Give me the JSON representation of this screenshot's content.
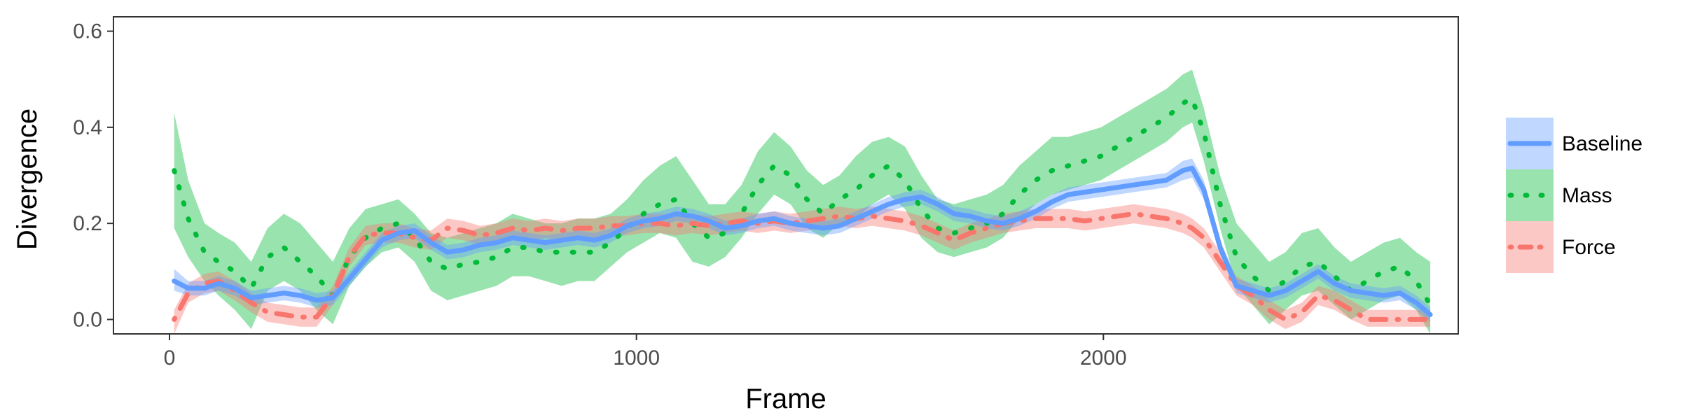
{
  "chart_data": {
    "type": "line",
    "xlabel": "Frame",
    "ylabel": "Divergence",
    "xlim": [
      -120,
      2760
    ],
    "ylim": [
      -0.03,
      0.63
    ],
    "xticks": [
      0,
      1000,
      2000
    ],
    "yticks": [
      0.0,
      0.2,
      0.4,
      0.6
    ],
    "xtick_labels": [
      "0",
      "1000",
      "2000"
    ],
    "ytick_labels": [
      "0.0",
      "0.2",
      "0.4",
      "0.6"
    ],
    "grid": false,
    "legend_position": "right",
    "x": [
      10,
      40,
      75,
      105,
      140,
      175,
      210,
      245,
      280,
      315,
      350,
      385,
      420,
      455,
      490,
      525,
      560,
      595,
      630,
      665,
      700,
      735,
      770,
      805,
      840,
      875,
      910,
      945,
      980,
      1015,
      1050,
      1085,
      1120,
      1155,
      1190,
      1225,
      1260,
      1295,
      1330,
      1365,
      1400,
      1435,
      1470,
      1505,
      1540,
      1575,
      1610,
      1645,
      1680,
      1715,
      1750,
      1785,
      1820,
      1855,
      1890,
      1925,
      1960,
      1995,
      2030,
      2065,
      2100,
      2135,
      2170,
      2190,
      2215,
      2250,
      2285,
      2320,
      2355,
      2390,
      2425,
      2460,
      2495,
      2530,
      2565,
      2600,
      2635,
      2670,
      2700
    ],
    "series": [
      {
        "name": "Baseline",
        "color": "#619CFF",
        "line": "solid",
        "y": [
          0.08,
          0.065,
          0.065,
          0.075,
          0.065,
          0.045,
          0.05,
          0.055,
          0.05,
          0.04,
          0.045,
          0.085,
          0.125,
          0.165,
          0.18,
          0.185,
          0.16,
          0.14,
          0.145,
          0.155,
          0.16,
          0.17,
          0.165,
          0.16,
          0.165,
          0.17,
          0.165,
          0.175,
          0.195,
          0.205,
          0.21,
          0.22,
          0.215,
          0.205,
          0.19,
          0.195,
          0.205,
          0.21,
          0.2,
          0.195,
          0.19,
          0.195,
          0.21,
          0.225,
          0.24,
          0.25,
          0.255,
          0.24,
          0.22,
          0.215,
          0.205,
          0.2,
          0.21,
          0.225,
          0.245,
          0.26,
          0.265,
          0.27,
          0.275,
          0.28,
          0.285,
          0.29,
          0.31,
          0.315,
          0.27,
          0.15,
          0.07,
          0.06,
          0.05,
          0.06,
          0.08,
          0.1,
          0.075,
          0.06,
          0.055,
          0.05,
          0.055,
          0.035,
          0.01
        ],
        "lower": [
          0.06,
          0.05,
          0.05,
          0.06,
          0.05,
          0.03,
          0.035,
          0.04,
          0.035,
          0.025,
          0.03,
          0.07,
          0.11,
          0.15,
          0.165,
          0.17,
          0.145,
          0.125,
          0.13,
          0.14,
          0.145,
          0.155,
          0.15,
          0.145,
          0.15,
          0.155,
          0.15,
          0.16,
          0.18,
          0.19,
          0.195,
          0.205,
          0.2,
          0.19,
          0.175,
          0.18,
          0.19,
          0.195,
          0.185,
          0.18,
          0.175,
          0.18,
          0.195,
          0.21,
          0.225,
          0.235,
          0.24,
          0.225,
          0.205,
          0.2,
          0.19,
          0.185,
          0.195,
          0.21,
          0.23,
          0.245,
          0.25,
          0.255,
          0.26,
          0.265,
          0.27,
          0.275,
          0.29,
          0.295,
          0.25,
          0.135,
          0.055,
          0.045,
          0.035,
          0.045,
          0.065,
          0.085,
          0.06,
          0.045,
          0.04,
          0.035,
          0.04,
          0.02,
          -0.005
        ],
        "upper": [
          0.105,
          0.08,
          0.08,
          0.09,
          0.08,
          0.06,
          0.065,
          0.07,
          0.065,
          0.055,
          0.06,
          0.1,
          0.14,
          0.18,
          0.195,
          0.2,
          0.175,
          0.155,
          0.16,
          0.17,
          0.175,
          0.185,
          0.18,
          0.175,
          0.18,
          0.185,
          0.18,
          0.19,
          0.21,
          0.22,
          0.225,
          0.235,
          0.23,
          0.22,
          0.205,
          0.21,
          0.22,
          0.225,
          0.215,
          0.21,
          0.205,
          0.21,
          0.225,
          0.24,
          0.255,
          0.265,
          0.27,
          0.255,
          0.235,
          0.23,
          0.22,
          0.215,
          0.225,
          0.24,
          0.26,
          0.275,
          0.28,
          0.285,
          0.29,
          0.295,
          0.3,
          0.305,
          0.33,
          0.335,
          0.29,
          0.165,
          0.085,
          0.075,
          0.065,
          0.075,
          0.095,
          0.115,
          0.09,
          0.075,
          0.07,
          0.065,
          0.07,
          0.05,
          0.025
        ]
      },
      {
        "name": "Mass",
        "color": "#00BA38",
        "line": "dotted",
        "y": [
          0.31,
          0.21,
          0.14,
          0.12,
          0.1,
          0.065,
          0.13,
          0.15,
          0.12,
          0.09,
          0.05,
          0.13,
          0.17,
          0.19,
          0.2,
          0.17,
          0.12,
          0.105,
          0.115,
          0.12,
          0.13,
          0.15,
          0.15,
          0.14,
          0.14,
          0.14,
          0.14,
          0.16,
          0.19,
          0.22,
          0.24,
          0.25,
          0.2,
          0.17,
          0.18,
          0.22,
          0.28,
          0.32,
          0.3,
          0.25,
          0.22,
          0.25,
          0.27,
          0.3,
          0.32,
          0.29,
          0.23,
          0.19,
          0.18,
          0.19,
          0.2,
          0.22,
          0.26,
          0.29,
          0.31,
          0.32,
          0.33,
          0.34,
          0.36,
          0.38,
          0.4,
          0.42,
          0.45,
          0.46,
          0.39,
          0.24,
          0.13,
          0.09,
          0.06,
          0.08,
          0.11,
          0.12,
          0.09,
          0.06,
          0.08,
          0.1,
          0.11,
          0.08,
          0.03
        ],
        "lower": [
          0.19,
          0.13,
          0.08,
          0.05,
          0.02,
          -0.02,
          0.06,
          0.08,
          0.06,
          0.02,
          -0.01,
          0.07,
          0.11,
          0.14,
          0.15,
          0.12,
          0.06,
          0.04,
          0.05,
          0.06,
          0.07,
          0.09,
          0.09,
          0.08,
          0.07,
          0.08,
          0.08,
          0.11,
          0.14,
          0.16,
          0.18,
          0.17,
          0.12,
          0.11,
          0.13,
          0.17,
          0.22,
          0.26,
          0.24,
          0.19,
          0.17,
          0.2,
          0.21,
          0.24,
          0.26,
          0.23,
          0.17,
          0.14,
          0.13,
          0.14,
          0.15,
          0.17,
          0.21,
          0.24,
          0.26,
          0.27,
          0.28,
          0.29,
          0.31,
          0.33,
          0.35,
          0.37,
          0.4,
          0.41,
          0.33,
          0.19,
          0.07,
          0.03,
          -0.01,
          0.02,
          0.05,
          0.06,
          0.03,
          0.0,
          0.02,
          0.04,
          0.05,
          0.02,
          -0.03
        ],
        "upper": [
          0.43,
          0.29,
          0.2,
          0.18,
          0.16,
          0.12,
          0.19,
          0.22,
          0.2,
          0.16,
          0.12,
          0.19,
          0.23,
          0.24,
          0.25,
          0.22,
          0.18,
          0.17,
          0.18,
          0.19,
          0.2,
          0.22,
          0.21,
          0.2,
          0.2,
          0.21,
          0.21,
          0.22,
          0.25,
          0.29,
          0.32,
          0.34,
          0.29,
          0.24,
          0.24,
          0.28,
          0.35,
          0.39,
          0.36,
          0.31,
          0.28,
          0.3,
          0.34,
          0.37,
          0.38,
          0.36,
          0.3,
          0.25,
          0.24,
          0.25,
          0.26,
          0.28,
          0.32,
          0.35,
          0.38,
          0.38,
          0.39,
          0.4,
          0.42,
          0.44,
          0.46,
          0.48,
          0.51,
          0.52,
          0.44,
          0.3,
          0.2,
          0.16,
          0.12,
          0.14,
          0.18,
          0.19,
          0.15,
          0.12,
          0.14,
          0.16,
          0.17,
          0.14,
          0.12
        ]
      },
      {
        "name": "Force",
        "color": "#F8766D",
        "line": "dotdash",
        "y": [
          0.0,
          0.055,
          0.075,
          0.08,
          0.06,
          0.035,
          0.015,
          0.01,
          0.005,
          0.005,
          0.05,
          0.13,
          0.175,
          0.18,
          0.18,
          0.17,
          0.165,
          0.19,
          0.185,
          0.175,
          0.18,
          0.19,
          0.185,
          0.19,
          0.185,
          0.19,
          0.19,
          0.195,
          0.195,
          0.2,
          0.2,
          0.195,
          0.2,
          0.195,
          0.2,
          0.205,
          0.2,
          0.205,
          0.2,
          0.205,
          0.21,
          0.215,
          0.21,
          0.215,
          0.21,
          0.205,
          0.195,
          0.18,
          0.165,
          0.18,
          0.19,
          0.2,
          0.205,
          0.21,
          0.21,
          0.21,
          0.205,
          0.21,
          0.215,
          0.22,
          0.215,
          0.21,
          0.2,
          0.19,
          0.17,
          0.12,
          0.07,
          0.05,
          0.02,
          0.0,
          0.015,
          0.05,
          0.04,
          0.02,
          0.0,
          0.0,
          0.0,
          0.0,
          0.0
        ],
        "lower": [
          -0.03,
          0.035,
          0.055,
          0.06,
          0.04,
          0.015,
          -0.005,
          -0.01,
          -0.015,
          -0.015,
          0.03,
          0.11,
          0.155,
          0.16,
          0.16,
          0.15,
          0.145,
          0.17,
          0.165,
          0.155,
          0.16,
          0.17,
          0.165,
          0.17,
          0.165,
          0.17,
          0.17,
          0.175,
          0.175,
          0.18,
          0.18,
          0.175,
          0.18,
          0.175,
          0.18,
          0.185,
          0.18,
          0.185,
          0.18,
          0.185,
          0.19,
          0.195,
          0.19,
          0.195,
          0.19,
          0.185,
          0.175,
          0.16,
          0.145,
          0.16,
          0.17,
          0.18,
          0.185,
          0.19,
          0.19,
          0.19,
          0.185,
          0.19,
          0.195,
          0.2,
          0.195,
          0.19,
          0.18,
          0.17,
          0.15,
          0.1,
          0.05,
          0.03,
          0.0,
          -0.02,
          -0.005,
          0.03,
          0.02,
          0.0,
          -0.015,
          -0.015,
          -0.015,
          -0.015,
          -0.015
        ],
        "upper": [
          0.02,
          0.075,
          0.095,
          0.1,
          0.08,
          0.055,
          0.035,
          0.03,
          0.025,
          0.025,
          0.07,
          0.15,
          0.195,
          0.2,
          0.2,
          0.19,
          0.185,
          0.21,
          0.205,
          0.195,
          0.2,
          0.21,
          0.205,
          0.21,
          0.205,
          0.21,
          0.21,
          0.215,
          0.215,
          0.22,
          0.22,
          0.215,
          0.22,
          0.215,
          0.22,
          0.225,
          0.22,
          0.225,
          0.22,
          0.225,
          0.23,
          0.235,
          0.23,
          0.235,
          0.23,
          0.225,
          0.215,
          0.2,
          0.185,
          0.2,
          0.21,
          0.22,
          0.225,
          0.23,
          0.23,
          0.23,
          0.225,
          0.23,
          0.235,
          0.24,
          0.235,
          0.23,
          0.22,
          0.21,
          0.19,
          0.14,
          0.09,
          0.07,
          0.04,
          0.02,
          0.035,
          0.07,
          0.06,
          0.04,
          0.02,
          0.02,
          0.02,
          0.02,
          0.02
        ]
      }
    ]
  }
}
